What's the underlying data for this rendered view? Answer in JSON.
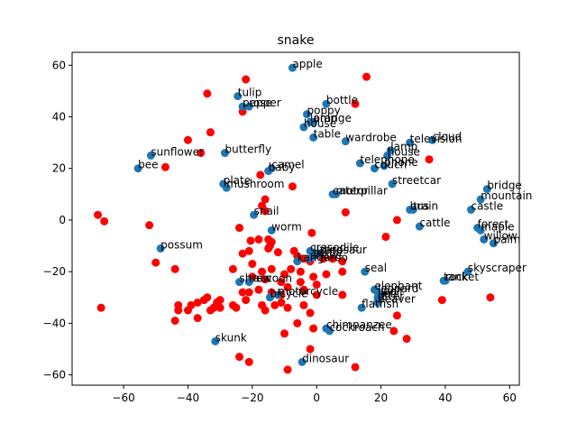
{
  "chart_data": {
    "type": "scatter",
    "title": "snake",
    "xlabel": "",
    "ylabel": "",
    "xlim": [
      -76,
      63
    ],
    "ylim": [
      -64,
      65
    ],
    "xticks": [
      -60,
      -40,
      -20,
      0,
      20,
      40,
      60
    ],
    "yticks": [
      -60,
      -40,
      -20,
      0,
      20,
      40,
      60
    ],
    "grid": false,
    "colors": {
      "labeled": "#1f77b4",
      "unlabeled": "#ff0000"
    },
    "labeled_points": [
      {
        "label": "apple",
        "x": -7.5,
        "y": 59
      },
      {
        "label": "tulip",
        "x": -24.5,
        "y": 48
      },
      {
        "label": "pepper",
        "x": -23,
        "y": 44
      },
      {
        "label": "rose",
        "x": -21,
        "y": 44
      },
      {
        "label": "bottle",
        "x": 3,
        "y": 45
      },
      {
        "label": "poppy",
        "x": -3,
        "y": 41
      },
      {
        "label": "orange",
        "x": -1,
        "y": 38
      },
      {
        "label": "lamp",
        "x": -2,
        "y": 38
      },
      {
        "label": "house",
        "x": -4,
        "y": 36
      },
      {
        "label": "table",
        "x": -1,
        "y": 32
      },
      {
        "label": "wardrobe",
        "x": 9,
        "y": 30.5
      },
      {
        "label": "cloud",
        "x": 36,
        "y": 31
      },
      {
        "label": "television",
        "x": 29,
        "y": 30
      },
      {
        "label": "lamp",
        "x": 23,
        "y": 27
      },
      {
        "label": "house",
        "x": 22,
        "y": 25
      },
      {
        "label": "telephone",
        "x": 13.5,
        "y": 22
      },
      {
        "label": "couch",
        "x": 18,
        "y": 20
      },
      {
        "label": "phone",
        "x": 21,
        "y": 21
      },
      {
        "label": "sunflower",
        "x": -51.5,
        "y": 25
      },
      {
        "label": "bee",
        "x": -55.5,
        "y": 20
      },
      {
        "label": "butterfly",
        "x": -28.5,
        "y": 26
      },
      {
        "label": "baby",
        "x": -15,
        "y": 19
      },
      {
        "label": "camel",
        "x": -14,
        "y": 20
      },
      {
        "label": "plate",
        "x": -29,
        "y": 14
      },
      {
        "label": "mushroom",
        "x": -28,
        "y": 12.5
      },
      {
        "label": "streetcar",
        "x": 23.5,
        "y": 14
      },
      {
        "label": "caterpillar",
        "x": 5,
        "y": 10
      },
      {
        "label": "motor",
        "x": 6,
        "y": 10
      },
      {
        "label": "bridge",
        "x": 53,
        "y": 12
      },
      {
        "label": "mountain",
        "x": 51,
        "y": 8
      },
      {
        "label": "castle",
        "x": 48,
        "y": 4
      },
      {
        "label": "bus",
        "x": 29,
        "y": 4
      },
      {
        "label": "train",
        "x": 30,
        "y": 4
      },
      {
        "label": "snail",
        "x": -19.5,
        "y": 2
      },
      {
        "label": "cattle",
        "x": 32,
        "y": -2.5
      },
      {
        "label": "forest",
        "x": 50,
        "y": -3
      },
      {
        "label": "maple",
        "x": 51,
        "y": -4
      },
      {
        "label": "willow",
        "x": 52,
        "y": -7.5
      },
      {
        "label": "palm",
        "x": 55,
        "y": -9
      },
      {
        "label": "worm",
        "x": -14,
        "y": -4
      },
      {
        "label": "possum",
        "x": -48.5,
        "y": -11
      },
      {
        "label": "crocodile",
        "x": -2,
        "y": -12
      },
      {
        "label": "lizard",
        "x": -1,
        "y": -13
      },
      {
        "label": "snake",
        "x": -2,
        "y": -15
      },
      {
        "label": "turtle",
        "x": -1,
        "y": -14
      },
      {
        "label": "dinosaur",
        "x": 1,
        "y": -13
      },
      {
        "label": "kangaroo",
        "x": -6,
        "y": -16
      },
      {
        "label": "seal",
        "x": 15,
        "y": -20
      },
      {
        "label": "skyscraper",
        "x": 47,
        "y": -20
      },
      {
        "label": "rocket",
        "x": 40,
        "y": -23.5
      },
      {
        "label": "tank",
        "x": 39.5,
        "y": -23.5
      },
      {
        "label": "shrew",
        "x": -24,
        "y": -24
      },
      {
        "label": "raccoon",
        "x": -21,
        "y": -24
      },
      {
        "label": "bicycle",
        "x": -14.5,
        "y": -30
      },
      {
        "label": "motorcycle",
        "x": -12,
        "y": -29
      },
      {
        "label": "elephant",
        "x": 18,
        "y": -27
      },
      {
        "label": "leopard",
        "x": 19,
        "y": -28
      },
      {
        "label": "wolf",
        "x": 20,
        "y": -29
      },
      {
        "label": "lion",
        "x": 19,
        "y": -30
      },
      {
        "label": "otter",
        "x": 19,
        "y": -31
      },
      {
        "label": "flatfish",
        "x": 14,
        "y": -34
      },
      {
        "label": "beaver",
        "x": 19,
        "y": -32
      },
      {
        "label": "chimpanzee",
        "x": 3,
        "y": -42
      },
      {
        "label": "cockroach",
        "x": 4,
        "y": -43
      },
      {
        "label": "skunk",
        "x": -31.5,
        "y": -47
      },
      {
        "label": "dinosaur",
        "x": -4.5,
        "y": -55
      }
    ],
    "unlabeled_points": [
      [
        -22,
        54.5
      ],
      [
        15.5,
        55.5
      ],
      [
        -34,
        49
      ],
      [
        12,
        45
      ],
      [
        -23,
        42
      ],
      [
        -33,
        34
      ],
      [
        -40,
        31
      ],
      [
        -36,
        26
      ],
      [
        -47,
        20.5
      ],
      [
        35,
        23.5
      ],
      [
        -17.5,
        17.5
      ],
      [
        -7.5,
        13
      ],
      [
        -16,
        8
      ],
      [
        -17,
        5.5
      ],
      [
        -16,
        3.5
      ],
      [
        9,
        3
      ],
      [
        25,
        0
      ],
      [
        -68,
        2
      ],
      [
        -66,
        -0.5
      ],
      [
        -52,
        -2
      ],
      [
        -24,
        -3
      ],
      [
        -1.5,
        -5
      ],
      [
        21.5,
        -6.5
      ],
      [
        -15,
        -7.5
      ],
      [
        -14,
        -8.5
      ],
      [
        -14.5,
        -10
      ],
      [
        -15,
        -11
      ],
      [
        -20.5,
        -8
      ],
      [
        -18,
        -7.5
      ],
      [
        -21,
        -12
      ],
      [
        -12,
        -12.5
      ],
      [
        -7,
        -12
      ],
      [
        -4,
        -15
      ],
      [
        -2,
        -16
      ],
      [
        -6,
        -14
      ],
      [
        2,
        -15
      ],
      [
        5,
        -15
      ],
      [
        8,
        -16
      ],
      [
        -50,
        -16.5
      ],
      [
        -44,
        -19
      ],
      [
        -23,
        -13
      ],
      [
        -20,
        -17
      ],
      [
        -17,
        -20
      ],
      [
        -14,
        -19
      ],
      [
        -10,
        -21
      ],
      [
        -8,
        -19
      ],
      [
        -5,
        -20
      ],
      [
        -16,
        -23
      ],
      [
        -20,
        -22
      ],
      [
        -11,
        -24
      ],
      [
        -5,
        -24
      ],
      [
        -1,
        -22
      ],
      [
        3,
        -21
      ],
      [
        8,
        -20
      ],
      [
        -26,
        -19
      ],
      [
        -23,
        -28
      ],
      [
        -21,
        -28
      ],
      [
        -18,
        -27
      ],
      [
        -14,
        -28
      ],
      [
        -11,
        -29
      ],
      [
        -9,
        -26
      ],
      [
        -4,
        -27
      ],
      [
        0,
        -25
      ],
      [
        0,
        -29
      ],
      [
        8,
        -29
      ],
      [
        -43,
        -33
      ],
      [
        -43,
        -35
      ],
      [
        -40,
        -35
      ],
      [
        -39,
        -33
      ],
      [
        -37,
        -32
      ],
      [
        -35,
        -31
      ],
      [
        -34,
        -30
      ],
      [
        -33,
        -35
      ],
      [
        -32,
        -34
      ],
      [
        -31,
        -32
      ],
      [
        -30,
        -31
      ],
      [
        -26,
        -33
      ],
      [
        -22,
        -31
      ],
      [
        -17,
        -33
      ],
      [
        -16,
        -35
      ],
      [
        -13,
        -33
      ],
      [
        -11,
        -32
      ],
      [
        -9,
        -34
      ],
      [
        -4,
        -33
      ],
      [
        -2,
        -36
      ],
      [
        -44,
        -39
      ],
      [
        -37,
        -38
      ],
      [
        -30,
        -34
      ],
      [
        -25,
        -34
      ],
      [
        -10,
        -44
      ],
      [
        -6,
        -40
      ],
      [
        -1,
        -42
      ],
      [
        25,
        -37
      ],
      [
        39,
        -31
      ],
      [
        54,
        -30
      ],
      [
        24,
        -43
      ],
      [
        28,
        -46
      ],
      [
        -24,
        -53
      ],
      [
        -21,
        -55
      ],
      [
        -9,
        -58
      ],
      [
        -2,
        -50
      ],
      [
        12,
        -57
      ],
      [
        -67,
        -34
      ]
    ]
  }
}
